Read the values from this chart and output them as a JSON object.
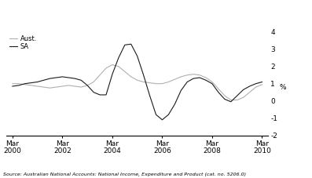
{
  "title": "",
  "ylabel": "%",
  "source": "Source: Australian National Accounts: National Income, Expenditure and Product (cat. no. 5206.0)",
  "xlim": [
    2000.0,
    2010.5
  ],
  "ylim": [
    -2.0,
    4.0
  ],
  "yticks": [
    -2,
    -1,
    0,
    1,
    2,
    3,
    4
  ],
  "xtick_positions": [
    2000.25,
    2002.25,
    2004.25,
    2006.25,
    2008.25,
    2010.25
  ],
  "xtick_labels": [
    "Mar\n2000",
    "Mar\n2002",
    "Mar\n2004",
    "Mar\n2006",
    "Mar\n2008",
    "Mar\n2010"
  ],
  "legend_labels": [
    "SA",
    "Aust."
  ],
  "sa_x": [
    2000.25,
    2000.5,
    2000.75,
    2001.0,
    2001.25,
    2001.5,
    2001.75,
    2002.0,
    2002.25,
    2002.5,
    2002.75,
    2003.0,
    2003.25,
    2003.5,
    2003.75,
    2004.0,
    2004.25,
    2004.5,
    2004.75,
    2005.0,
    2005.25,
    2005.5,
    2005.75,
    2006.0,
    2006.25,
    2006.5,
    2006.75,
    2007.0,
    2007.25,
    2007.5,
    2007.75,
    2008.0,
    2008.25,
    2008.5,
    2008.75,
    2009.0,
    2009.25,
    2009.5,
    2009.75,
    2010.0,
    2010.25
  ],
  "sa_y": [
    0.85,
    0.9,
    1.0,
    1.05,
    1.1,
    1.2,
    1.3,
    1.35,
    1.4,
    1.35,
    1.3,
    1.2,
    0.9,
    0.5,
    0.35,
    0.35,
    1.55,
    2.5,
    3.25,
    3.3,
    2.6,
    1.5,
    0.3,
    -0.8,
    -1.1,
    -0.8,
    -0.2,
    0.6,
    1.1,
    1.3,
    1.35,
    1.2,
    1.0,
    0.5,
    0.1,
    -0.05,
    0.3,
    0.65,
    0.85,
    1.0,
    1.1
  ],
  "aust_x": [
    2000.25,
    2000.5,
    2000.75,
    2001.0,
    2001.25,
    2001.5,
    2001.75,
    2002.0,
    2002.25,
    2002.5,
    2002.75,
    2003.0,
    2003.25,
    2003.5,
    2003.75,
    2004.0,
    2004.25,
    2004.5,
    2004.75,
    2005.0,
    2005.25,
    2005.5,
    2005.75,
    2006.0,
    2006.25,
    2006.5,
    2006.75,
    2007.0,
    2007.25,
    2007.5,
    2007.75,
    2008.0,
    2008.25,
    2008.5,
    2008.75,
    2009.0,
    2009.25,
    2009.5,
    2009.75,
    2010.0,
    2010.25
  ],
  "aust_y": [
    1.0,
    1.0,
    0.95,
    0.9,
    0.85,
    0.8,
    0.75,
    0.8,
    0.85,
    0.9,
    0.85,
    0.8,
    0.9,
    1.1,
    1.5,
    1.9,
    2.1,
    2.0,
    1.7,
    1.4,
    1.2,
    1.1,
    1.05,
    1.0,
    1.0,
    1.1,
    1.25,
    1.4,
    1.5,
    1.55,
    1.5,
    1.35,
    1.1,
    0.7,
    0.3,
    0.05,
    0.05,
    0.2,
    0.5,
    0.8,
    0.95
  ],
  "sa_color": "#1a1a1a",
  "aust_color": "#b0b0b0",
  "line_width": 0.8,
  "background_color": "#ffffff",
  "source_fontsize": 4.5,
  "tick_fontsize": 6.5
}
